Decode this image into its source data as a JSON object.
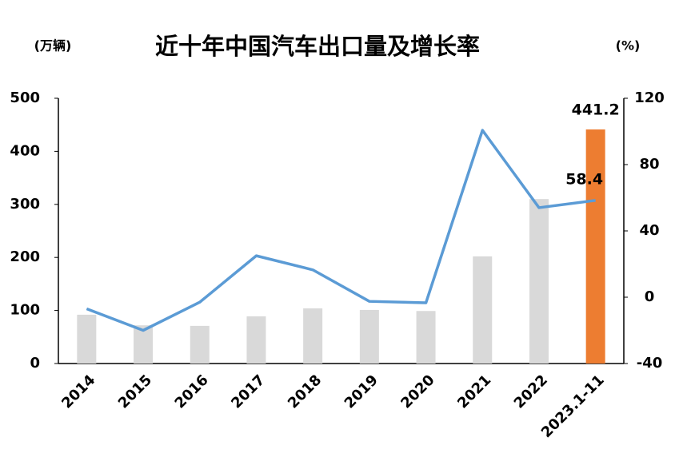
{
  "chart_data": {
    "type": "bar-line",
    "title": "近十年中国汽车出口量及增长率",
    "y_label": "(万辆)",
    "y2_label": "(%)",
    "categories": [
      "2014",
      "2015",
      "2016",
      "2017",
      "2018",
      "2019",
      "2020",
      "2021",
      "2022",
      "2023.1-11"
    ],
    "series": [
      {
        "name": "出口量",
        "type": "bar",
        "colors": [
          "#d9d9d9",
          "#d9d9d9",
          "#d9d9d9",
          "#d9d9d9",
          "#d9d9d9",
          "#d9d9d9",
          "#d9d9d9",
          "#d9d9d9",
          "#d9d9d9",
          "#ed7d31"
        ],
        "values": [
          92,
          72,
          71,
          89,
          104,
          101,
          99,
          202,
          310,
          441.2
        ]
      },
      {
        "name": "增长率",
        "type": "line",
        "axis": "y2",
        "color": "#5b9bd5",
        "values": [
          -7,
          -20,
          -3,
          25,
          16.5,
          -2.5,
          -3.4,
          100.7,
          54,
          58.4
        ]
      }
    ],
    "label_last": true,
    "ylim": [
      0,
      500
    ],
    "yticks": [
      0,
      100,
      200,
      300,
      400,
      500
    ],
    "y2lim": [
      -40,
      120
    ],
    "y2ticks": [
      -40,
      0,
      40,
      80,
      120
    ]
  }
}
